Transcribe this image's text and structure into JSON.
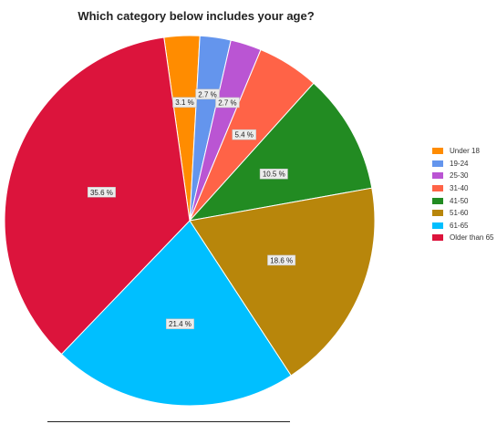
{
  "chart_data": {
    "type": "pie",
    "title": "Which category below includes your age?",
    "slices": [
      {
        "label": "Under 18",
        "value": 3.1,
        "display": "3.1 %",
        "color": "#ff8c00"
      },
      {
        "label": "19-24",
        "value": 2.7,
        "display": "2.7 %",
        "color": "#6495ed"
      },
      {
        "label": "25-30",
        "value": 2.7,
        "display": "2.7 %",
        "color": "#ba55d3"
      },
      {
        "label": "31-40",
        "value": 5.4,
        "display": "5.4 %",
        "color": "#ff6347"
      },
      {
        "label": "41-50",
        "value": 10.5,
        "display": "10.5 %",
        "color": "#228b22"
      },
      {
        "label": "51-60",
        "value": 18.6,
        "display": "18.6 %",
        "color": "#b8860b"
      },
      {
        "label": "61-65",
        "value": 21.4,
        "display": "21.4 %",
        "color": "#00bfff"
      },
      {
        "label": "Older than 65",
        "value": 35.6,
        "display": "35.6 %",
        "color": "#dc143c"
      }
    ],
    "legend_position": "right"
  }
}
